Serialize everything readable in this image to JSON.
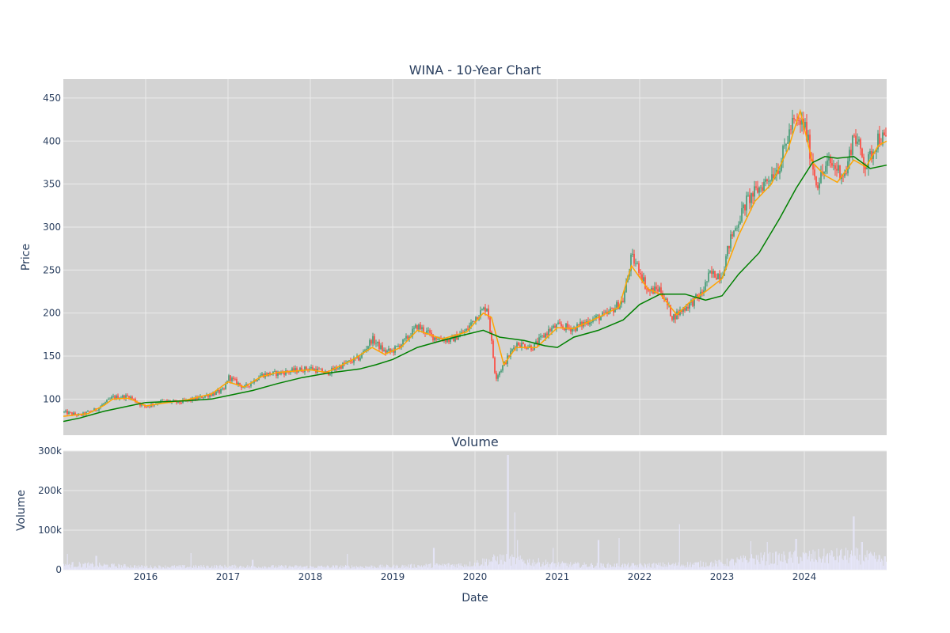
{
  "chart_data": [
    {
      "type": "candlestick",
      "title": "WINA - 10-Year Chart",
      "xlabel": "",
      "ylabel": "Price",
      "ylim": [
        58,
        472
      ],
      "yticks": [
        100,
        150,
        200,
        250,
        300,
        350,
        400,
        450
      ],
      "xlim": [
        2015.0,
        2025.0
      ],
      "colors": {
        "increasing": "#3d9970",
        "decreasing": "#ff4136",
        "ma_short": "#ffa500",
        "ma_long": "#008000",
        "background": "#d3d3d3",
        "grid": "#ebebeb"
      },
      "series": [
        {
          "name": "",
          "kind": "candlestick",
          "summary_points": [
            [
              2015.0,
              85
            ],
            [
              2015.2,
              81
            ],
            [
              2015.4,
              88
            ],
            [
              2015.5,
              95
            ],
            [
              2015.6,
              102
            ],
            [
              2015.8,
              103
            ],
            [
              2015.95,
              93
            ],
            [
              2016.0,
              91
            ],
            [
              2016.2,
              98
            ],
            [
              2016.4,
              96
            ],
            [
              2016.6,
              100
            ],
            [
              2016.8,
              106
            ],
            [
              2016.95,
              110
            ],
            [
              2017.0,
              126
            ],
            [
              2017.2,
              113
            ],
            [
              2017.4,
              128
            ],
            [
              2017.6,
              130
            ],
            [
              2017.8,
              133
            ],
            [
              2018.0,
              136
            ],
            [
              2018.2,
              130
            ],
            [
              2018.4,
              140
            ],
            [
              2018.6,
              148
            ],
            [
              2018.75,
              170
            ],
            [
              2018.9,
              155
            ],
            [
              2019.0,
              156
            ],
            [
              2019.15,
              168
            ],
            [
              2019.3,
              185
            ],
            [
              2019.5,
              172
            ],
            [
              2019.7,
              168
            ],
            [
              2019.9,
              180
            ],
            [
              2020.0,
              195
            ],
            [
              2020.15,
              208
            ],
            [
              2020.25,
              125
            ],
            [
              2020.35,
              140
            ],
            [
              2020.5,
              165
            ],
            [
              2020.7,
              160
            ],
            [
              2020.9,
              180
            ],
            [
              2021.0,
              185
            ],
            [
              2021.2,
              182
            ],
            [
              2021.4,
              192
            ],
            [
              2021.6,
              198
            ],
            [
              2021.8,
              215
            ],
            [
              2021.9,
              265
            ],
            [
              2022.0,
              250
            ],
            [
              2022.1,
              225
            ],
            [
              2022.25,
              228
            ],
            [
              2022.4,
              195
            ],
            [
              2022.6,
              210
            ],
            [
              2022.75,
              222
            ],
            [
              2022.85,
              245
            ],
            [
              2023.0,
              245
            ],
            [
              2023.1,
              285
            ],
            [
              2023.3,
              330
            ],
            [
              2023.5,
              350
            ],
            [
              2023.7,
              372
            ],
            [
              2023.85,
              420
            ],
            [
              2024.0,
              420
            ],
            [
              2024.15,
              350
            ],
            [
              2024.3,
              375
            ],
            [
              2024.5,
              360
            ],
            [
              2024.6,
              410
            ],
            [
              2024.75,
              370
            ],
            [
              2024.9,
              405
            ],
            [
              2025.0,
              400
            ]
          ]
        },
        {
          "name": "",
          "kind": "line",
          "points": [
            [
              2015.0,
              80
            ],
            [
              2015.3,
              83
            ],
            [
              2015.5,
              93
            ],
            [
              2015.6,
              100
            ],
            [
              2015.8,
              101
            ],
            [
              2016.0,
              92
            ],
            [
              2016.2,
              95
            ],
            [
              2016.5,
              99
            ],
            [
              2016.8,
              106
            ],
            [
              2017.0,
              120
            ],
            [
              2017.2,
              114
            ],
            [
              2017.4,
              126
            ],
            [
              2017.6,
              131
            ],
            [
              2018.0,
              134
            ],
            [
              2018.2,
              131
            ],
            [
              2018.5,
              145
            ],
            [
              2018.75,
              160
            ],
            [
              2018.9,
              152
            ],
            [
              2019.1,
              160
            ],
            [
              2019.3,
              180
            ],
            [
              2019.6,
              170
            ],
            [
              2019.9,
              178
            ],
            [
              2020.1,
              200
            ],
            [
              2020.2,
              195
            ],
            [
              2020.35,
              140
            ],
            [
              2020.5,
              160
            ],
            [
              2020.75,
              160
            ],
            [
              2021.0,
              183
            ],
            [
              2021.2,
              182
            ],
            [
              2021.5,
              195
            ],
            [
              2021.75,
              207
            ],
            [
              2021.9,
              255
            ],
            [
              2022.1,
              228
            ],
            [
              2022.25,
              222
            ],
            [
              2022.45,
              198
            ],
            [
              2022.6,
              212
            ],
            [
              2022.8,
              225
            ],
            [
              2023.0,
              240
            ],
            [
              2023.2,
              290
            ],
            [
              2023.4,
              330
            ],
            [
              2023.6,
              350
            ],
            [
              2023.8,
              390
            ],
            [
              2023.95,
              435
            ],
            [
              2024.1,
              375
            ],
            [
              2024.25,
              360
            ],
            [
              2024.4,
              352
            ],
            [
              2024.6,
              378
            ],
            [
              2024.75,
              370
            ],
            [
              2024.9,
              395
            ],
            [
              2025.0,
              400
            ]
          ]
        },
        {
          "name": "",
          "kind": "line",
          "points": [
            [
              2015.0,
              74
            ],
            [
              2015.2,
              78
            ],
            [
              2015.5,
              86
            ],
            [
              2015.8,
              92
            ],
            [
              2016.0,
              96
            ],
            [
              2016.5,
              98
            ],
            [
              2016.8,
              100
            ],
            [
              2017.0,
              104
            ],
            [
              2017.3,
              110
            ],
            [
              2017.6,
              118
            ],
            [
              2017.9,
              125
            ],
            [
              2018.2,
              130
            ],
            [
              2018.6,
              135
            ],
            [
              2018.8,
              140
            ],
            [
              2019.0,
              146
            ],
            [
              2019.3,
              160
            ],
            [
              2019.6,
              168
            ],
            [
              2019.8,
              173
            ],
            [
              2020.1,
              180
            ],
            [
              2020.3,
              172
            ],
            [
              2020.6,
              168
            ],
            [
              2020.85,
              162
            ],
            [
              2021.0,
              160
            ],
            [
              2021.2,
              172
            ],
            [
              2021.5,
              180
            ],
            [
              2021.8,
              192
            ],
            [
              2022.0,
              210
            ],
            [
              2022.25,
              222
            ],
            [
              2022.55,
              222
            ],
            [
              2022.8,
              215
            ],
            [
              2023.0,
              220
            ],
            [
              2023.2,
              245
            ],
            [
              2023.45,
              270
            ],
            [
              2023.7,
              310
            ],
            [
              2023.9,
              345
            ],
            [
              2024.1,
              375
            ],
            [
              2024.25,
              382
            ],
            [
              2024.4,
              380
            ],
            [
              2024.6,
              382
            ],
            [
              2024.8,
              368
            ],
            [
              2025.0,
              372
            ]
          ]
        }
      ]
    },
    {
      "type": "bar",
      "title": "Volume",
      "xlabel": "Date",
      "ylabel": "Volume",
      "ylim": [
        0,
        300000
      ],
      "yticks": [
        0,
        100000,
        200000,
        300000
      ],
      "ytick_labels": [
        "0",
        "100k",
        "200k",
        "300k"
      ],
      "xlim": [
        2015.0,
        2025.0
      ],
      "xtick_labels": [
        "2016",
        "2017",
        "2018",
        "2019",
        "2020",
        "2021",
        "2022",
        "2023",
        "2024"
      ],
      "xticks": [
        2016,
        2017,
        2018,
        2019,
        2020,
        2021,
        2022,
        2023,
        2024
      ],
      "color": "#e6e6fa",
      "base_levels": [
        [
          2015.0,
          15000
        ],
        [
          2015.5,
          12000
        ],
        [
          2016.0,
          8000
        ],
        [
          2017.0,
          9000
        ],
        [
          2018.0,
          8000
        ],
        [
          2019.0,
          9000
        ],
        [
          2019.9,
          14000
        ],
        [
          2020.3,
          30000
        ],
        [
          2020.7,
          22000
        ],
        [
          2021.0,
          15000
        ],
        [
          2021.5,
          12000
        ],
        [
          2022.0,
          12000
        ],
        [
          2022.5,
          14000
        ],
        [
          2023.0,
          18000
        ],
        [
          2023.4,
          30000
        ],
        [
          2024.0,
          35000
        ],
        [
          2024.6,
          40000
        ],
        [
          2025.0,
          25000
        ]
      ],
      "spikes": [
        [
          2015.05,
          40000
        ],
        [
          2015.4,
          35000
        ],
        [
          2016.55,
          42000
        ],
        [
          2017.3,
          25000
        ],
        [
          2018.45,
          40000
        ],
        [
          2019.5,
          55000
        ],
        [
          2020.4,
          290000
        ],
        [
          2020.48,
          145000
        ],
        [
          2020.52,
          75000
        ],
        [
          2020.95,
          55000
        ],
        [
          2021.5,
          75000
        ],
        [
          2021.75,
          80000
        ],
        [
          2022.48,
          115000
        ],
        [
          2023.35,
          72000
        ],
        [
          2023.55,
          70000
        ],
        [
          2023.9,
          78000
        ],
        [
          2024.6,
          135000
        ],
        [
          2024.7,
          70000
        ]
      ]
    }
  ]
}
